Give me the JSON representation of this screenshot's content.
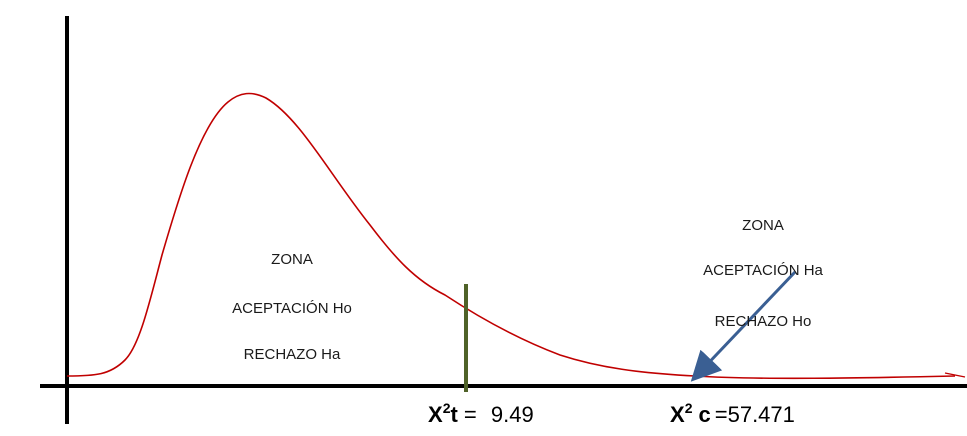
{
  "zones": {
    "left": {
      "line1": "ZONA",
      "line2": "ACEPTACIÓN Ho",
      "line3": "RECHAZO Ha"
    },
    "right": {
      "line1": "ZONA",
      "line2": "ACEPTACIÓN Ha",
      "line3": "RECHAZO Ho"
    }
  },
  "labels": {
    "tabulated": {
      "symbol": "X",
      "superscript": "2",
      "suffix": "t",
      "equals": " = ",
      "value": "9.49"
    },
    "calculated": {
      "symbol": "X",
      "superscript": "2",
      "suffix": "c",
      "equals": "=",
      "value": "57.471"
    }
  },
  "colors": {
    "curve": "#c00000",
    "critical_line": "#4f6228",
    "arrow": "#3a5f93",
    "axis": "#000000"
  }
}
